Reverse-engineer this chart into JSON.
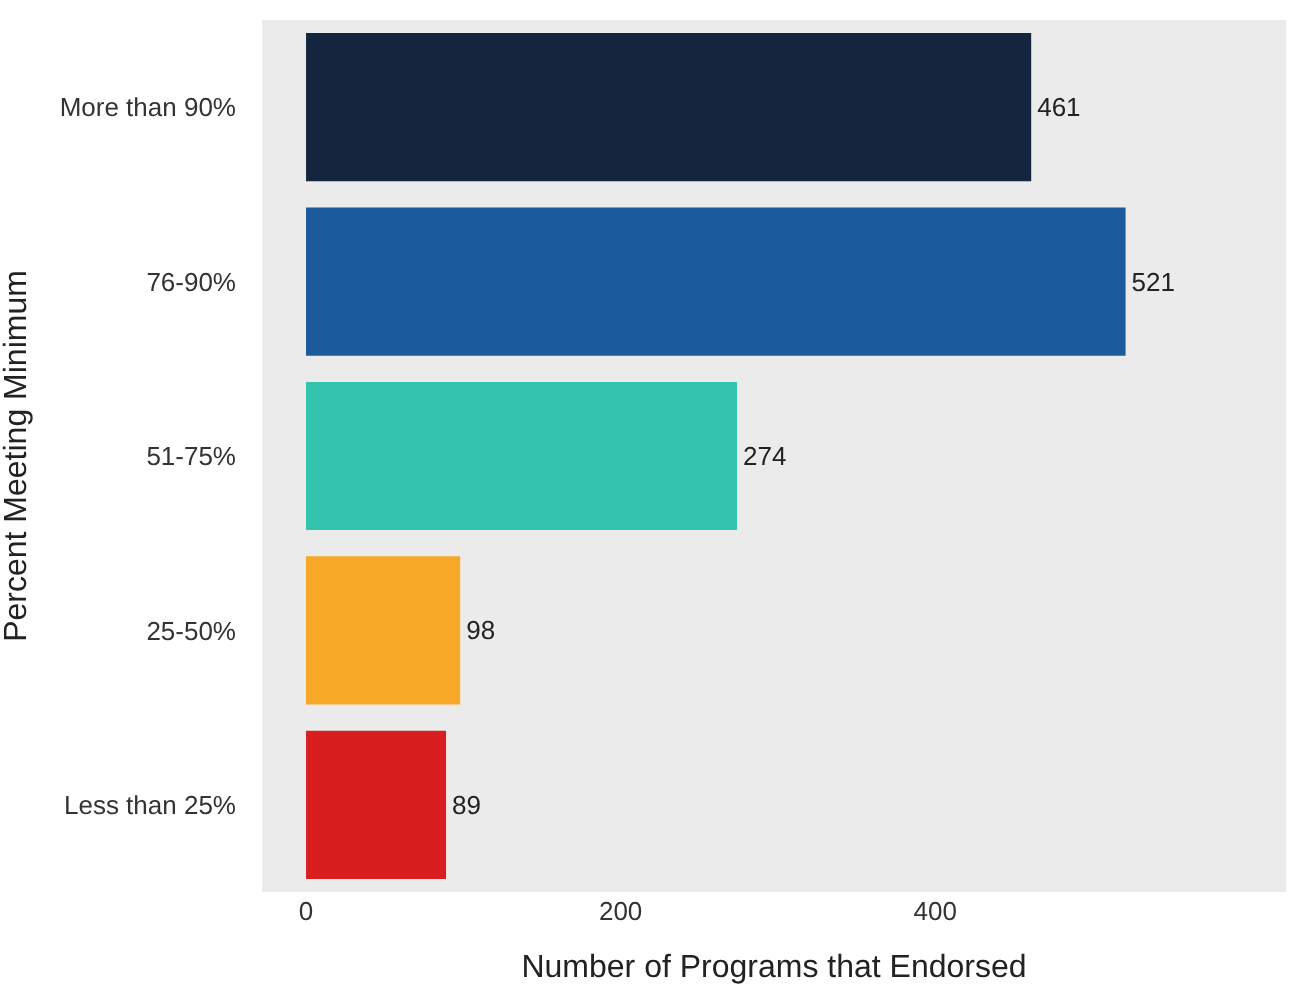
{
  "chart_data": {
    "type": "bar",
    "orientation": "horizontal",
    "xlabel": "Number of Programs that Endorsed",
    "ylabel": "Percent Meeting Minimum",
    "categories": [
      "More than 90%",
      "76-90%",
      "51-75%",
      "25-50%",
      "Less than 25%"
    ],
    "values": [
      461,
      521,
      274,
      98,
      89
    ],
    "colors": [
      "#14253e",
      "#1b5a9b",
      "#34c3ae",
      "#f7a826",
      "#d81e1e"
    ],
    "xlim": [
      -28,
      623
    ],
    "xticks": [
      0,
      200,
      400
    ],
    "grid": false,
    "data_labels": true,
    "legend": false
  }
}
